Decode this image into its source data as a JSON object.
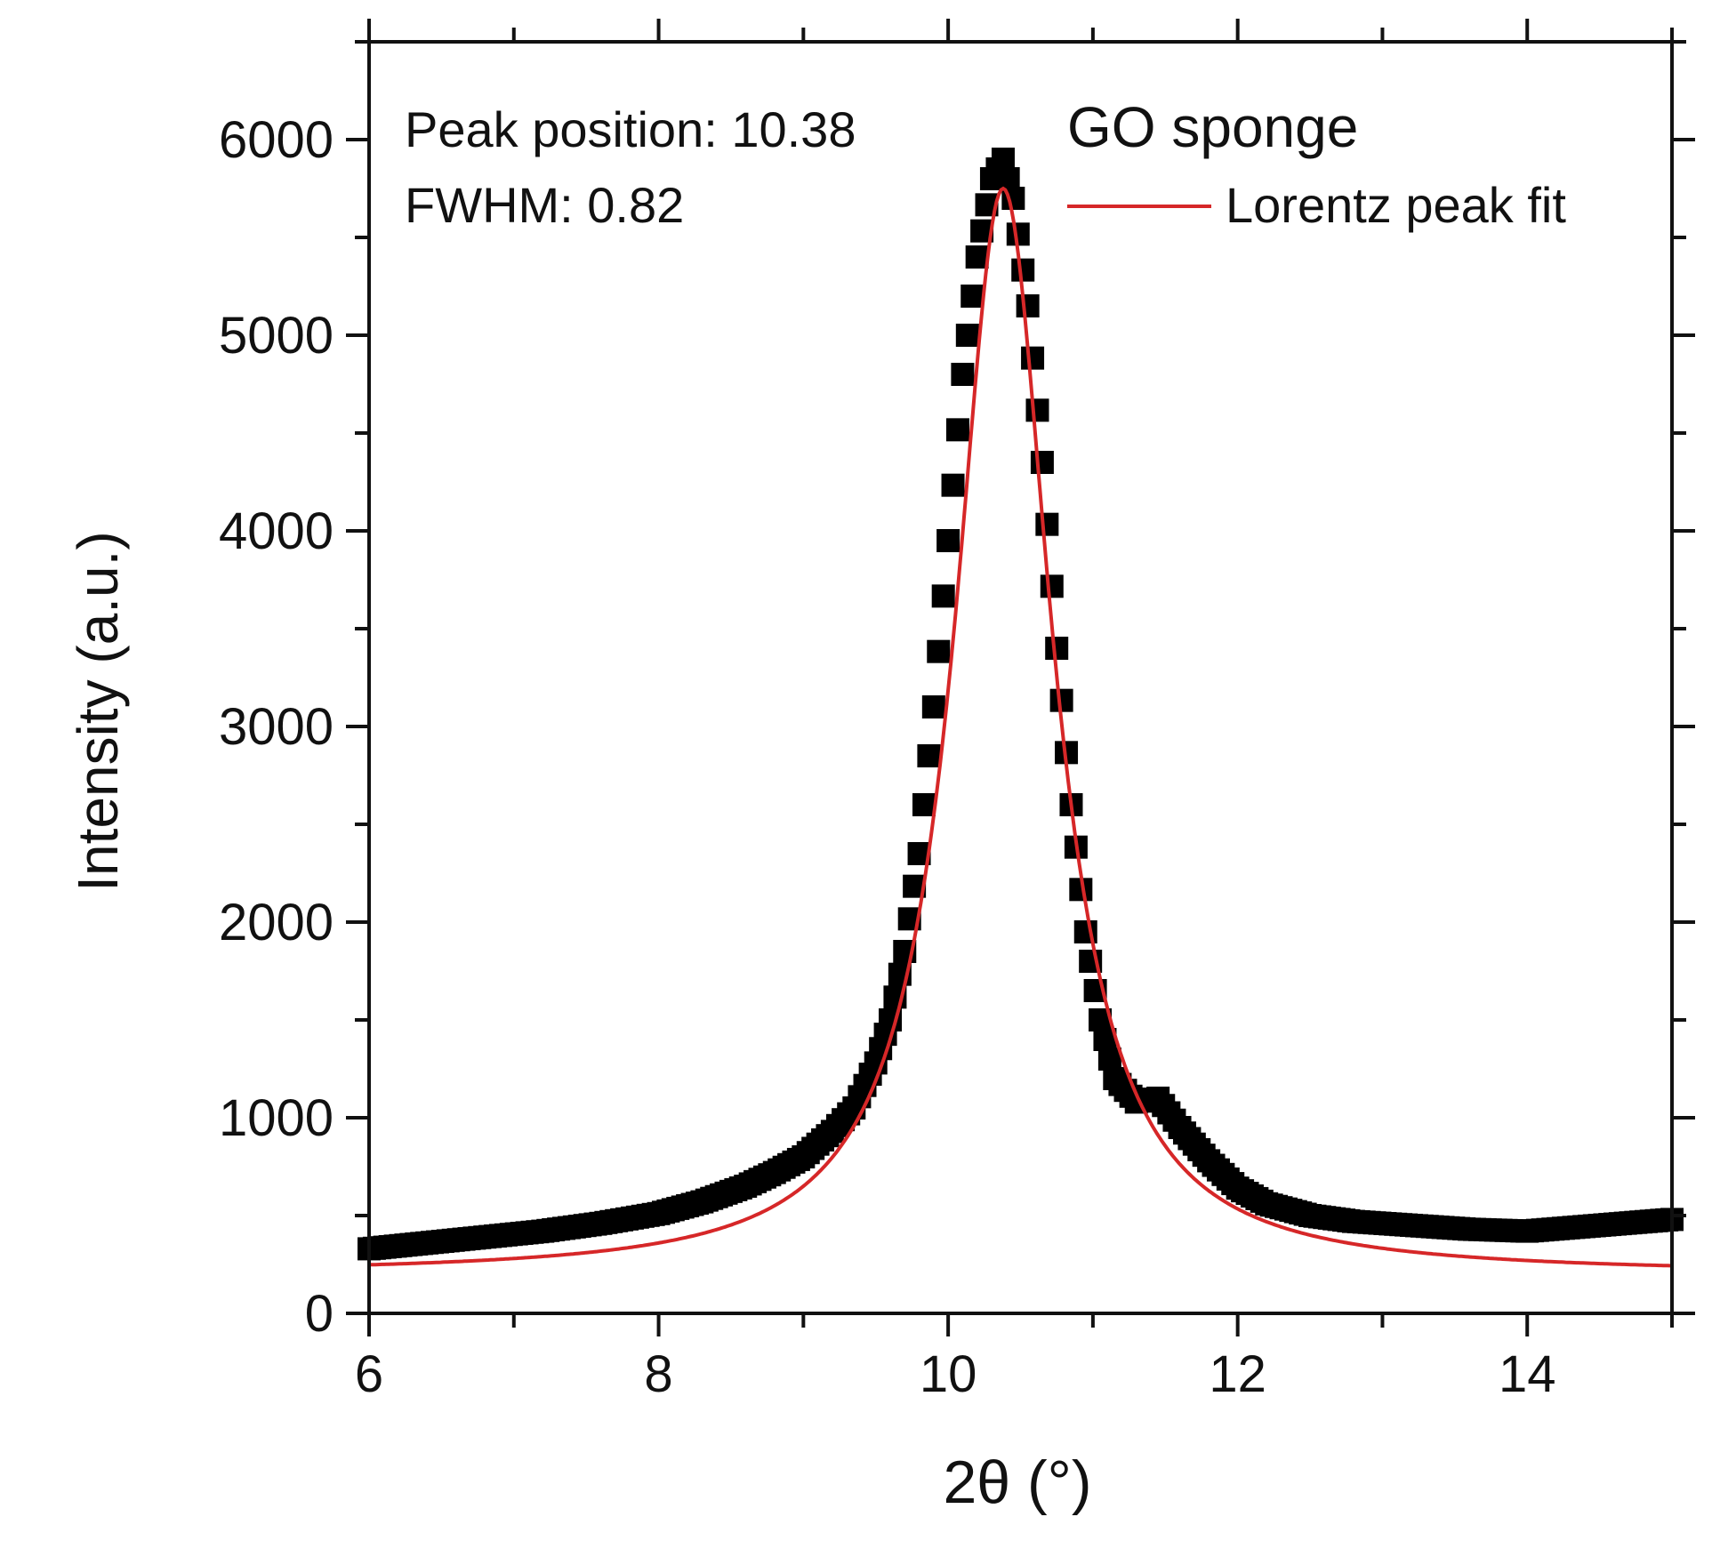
{
  "chart_data": {
    "type": "scatter",
    "title": "",
    "xlabel": "2θ (°)",
    "ylabel": "Intensity (a.u.)",
    "xlim": [
      6,
      15
    ],
    "ylim": [
      0,
      6500
    ],
    "xticks": [
      6,
      8,
      10,
      12,
      14
    ],
    "yticks": [
      0,
      1000,
      2000,
      3000,
      4000,
      5000,
      6000
    ],
    "xtick_labels": [
      "6",
      "8",
      "10",
      "12",
      "14"
    ],
    "ytick_labels": [
      "0",
      "1000",
      "2000",
      "3000",
      "4000",
      "5000",
      "6000"
    ],
    "grid": false,
    "legend_position": "top-right",
    "annotations": {
      "peak_position": "Peak position: 10.38",
      "fwhm": "FWHM: 0.82"
    },
    "series": [
      {
        "name": "GO sponge",
        "kind": "scatter",
        "marker": "square",
        "color": "#000000",
        "x": [
          6.0,
          6.4,
          6.8,
          7.2,
          7.6,
          8.0,
          8.3,
          8.6,
          8.8,
          9.0,
          9.2,
          9.35,
          9.5,
          9.6,
          9.7,
          9.8,
          9.9,
          10.0,
          10.1,
          10.2,
          10.3,
          10.38,
          10.45,
          10.55,
          10.65,
          10.75,
          10.85,
          10.95,
          11.05,
          11.15,
          11.3,
          11.45,
          11.6,
          11.8,
          12.0,
          12.2,
          12.5,
          12.8,
          13.2,
          13.6,
          14.0,
          14.5,
          15.0
        ],
        "y": [
          330,
          360,
          390,
          420,
          460,
          510,
          570,
          650,
          720,
          800,
          930,
          1050,
          1280,
          1500,
          1850,
          2350,
          3100,
          3950,
          4800,
          5400,
          5800,
          5900,
          5700,
          5150,
          4350,
          3400,
          2600,
          1950,
          1500,
          1200,
          1080,
          1100,
          950,
          780,
          640,
          560,
          500,
          470,
          450,
          430,
          420,
          450,
          480
        ]
      },
      {
        "name": "Lorentz peak fit",
        "kind": "line",
        "color": "#d62728",
        "center": 10.38,
        "fwhm": 0.82,
        "amplitude": 5550,
        "baseline": 200
      }
    ]
  }
}
